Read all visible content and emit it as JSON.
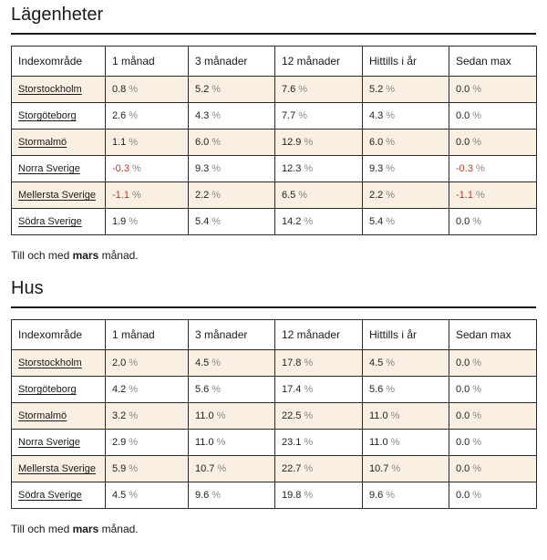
{
  "sections": [
    {
      "title": "Lägenheter",
      "headers": [
        "Indexområde",
        "1 månad",
        "3 månader",
        "12 månader",
        "Hittills i år",
        "Sedan max"
      ],
      "rows": [
        {
          "area": "Storstockholm",
          "values": [
            "0.8",
            "5.2",
            "7.6",
            "5.2",
            "0.0"
          ]
        },
        {
          "area": "Storgöteborg",
          "values": [
            "2.6",
            "4.3",
            "7.7",
            "4.3",
            "0.0"
          ]
        },
        {
          "area": "Stormalmö",
          "values": [
            "1.1",
            "6.0",
            "12.9",
            "6.0",
            "0.0"
          ]
        },
        {
          "area": "Norra Sverige",
          "values": [
            "-0.3",
            "9.3",
            "12.3",
            "9.3",
            "-0.3"
          ]
        },
        {
          "area": "Mellersta Sverige",
          "values": [
            "-1.1",
            "2.2",
            "6.5",
            "2.2",
            "-1.1"
          ]
        },
        {
          "area": "Södra Sverige",
          "values": [
            "1.9",
            "5.4",
            "14.2",
            "5.4",
            "0.0"
          ]
        }
      ],
      "footnote": {
        "prefix": "Till och med ",
        "month": "mars",
        "suffix": " månad."
      }
    },
    {
      "title": "Hus",
      "headers": [
        "Indexområde",
        "1 månad",
        "3 månader",
        "12 månader",
        "Hittills i år",
        "Sedan max"
      ],
      "rows": [
        {
          "area": "Storstockholm",
          "values": [
            "2.0",
            "4.5",
            "17.8",
            "4.5",
            "0.0"
          ]
        },
        {
          "area": "Storgöteborg",
          "values": [
            "4.2",
            "5.6",
            "17.4",
            "5.6",
            "0.0"
          ]
        },
        {
          "area": "Stormalmö",
          "values": [
            "3.2",
            "11.0",
            "22.5",
            "11.0",
            "0.0"
          ]
        },
        {
          "area": "Norra Sverige",
          "values": [
            "2.9",
            "11.0",
            "23.1",
            "11.0",
            "0.0"
          ]
        },
        {
          "area": "Mellersta Sverige",
          "values": [
            "5.9",
            "10.7",
            "22.7",
            "10.7",
            "0.0"
          ]
        },
        {
          "area": "Södra Sverige",
          "values": [
            "4.5",
            "9.6",
            "19.8",
            "9.6",
            "0.0"
          ]
        }
      ],
      "footnote": {
        "prefix": "Till och med ",
        "month": "mars",
        "suffix": " månad."
      }
    }
  ],
  "unit": "%",
  "colors": {
    "shaded_row": "#f9efe2",
    "negative": "#c0392b",
    "unit_gray": "#8a8a8a"
  }
}
